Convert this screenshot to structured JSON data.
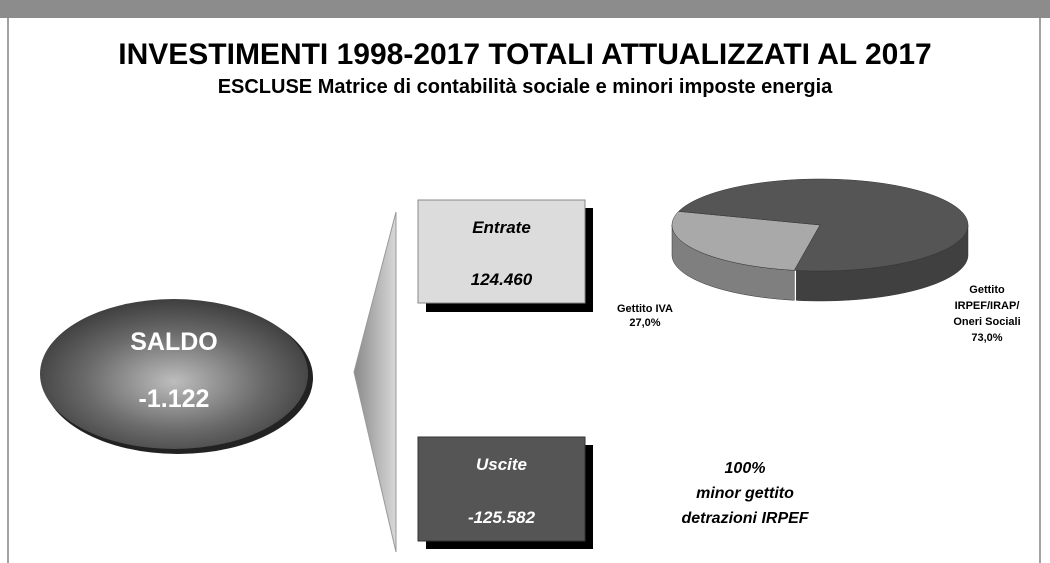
{
  "header": {
    "title": "INVESTIMENTI 1998-2017 TOTALI ATTUALIZZATI AL 2017",
    "subtitle": "ESCLUSE Matrice di contabilità sociale e minori imposte energia"
  },
  "saldo": {
    "label": "SALDO",
    "value": "-1.122"
  },
  "entrate": {
    "label": "Entrate",
    "value": "124.460"
  },
  "uscite": {
    "label": "Uscite",
    "value": "-125.582"
  },
  "note": [
    "100%",
    "minor gettito",
    "detrazioni IRPEF"
  ],
  "chart_data": {
    "type": "pie",
    "categories": [
      "Gettito IVA",
      "Gettito IRPEF/IRAP/ Oneri Sociali"
    ],
    "values": [
      27.0,
      73.0
    ],
    "value_labels": [
      "27,0%",
      "73,0%"
    ],
    "colors": [
      "#a9a9a9",
      "#555555"
    ]
  }
}
